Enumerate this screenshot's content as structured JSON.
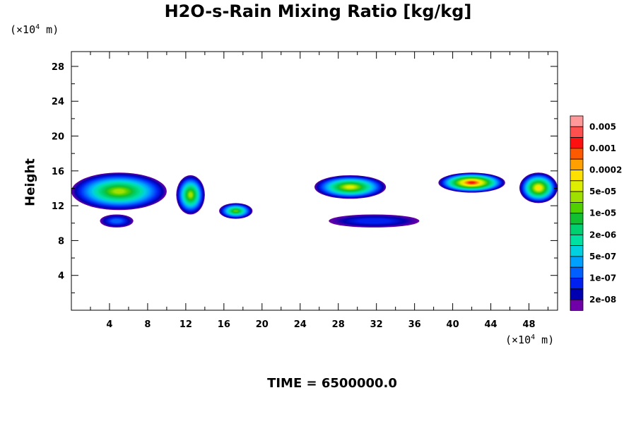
{
  "title": "H2O-s-Rain Mixing Ratio [kg/kg]",
  "time_label": "TIME = 6500000.0",
  "unit_y": {
    "prefix": "(×10",
    "exp": "4",
    "suffix": " m)"
  },
  "unit_x": {
    "prefix": "(×10",
    "exp": "4",
    "suffix": " m)"
  },
  "chart_data": {
    "type": "heatmap",
    "title": "H2O-s-Rain Mixing Ratio [kg/kg]",
    "ylabel": "Height",
    "xlabel": "",
    "x_unit": "×10^4 m",
    "y_unit": "×10^4 m",
    "xlim": [
      0,
      51
    ],
    "ylim": [
      0,
      29.7
    ],
    "x_ticks": [
      "4",
      "8",
      "12",
      "16",
      "20",
      "24",
      "28",
      "32",
      "36",
      "40",
      "44",
      "48"
    ],
    "y_ticks": [
      "4",
      "8",
      "12",
      "16",
      "20",
      "24",
      "28"
    ],
    "grid": false,
    "colorbar": {
      "labels": [
        "0.005",
        "0.001",
        "0.0002",
        "5e-05",
        "1e-05",
        "2e-06",
        "5e-07",
        "1e-07",
        "2e-08"
      ],
      "colors": [
        "#FF9999",
        "#FF5050",
        "#FF1010",
        "#FF5A00",
        "#FFA000",
        "#FFE000",
        "#DDEE00",
        "#A0E000",
        "#50D000",
        "#10C030",
        "#00D070",
        "#00E0A0",
        "#00D0E0",
        "#00A0FF",
        "#0060FF",
        "#0020F0",
        "#0000B0",
        "#7000A8"
      ]
    },
    "regions": [
      {
        "x": [
          0,
          10
        ],
        "y": [
          11.5,
          15.8
        ],
        "max_level": 10
      },
      {
        "x": [
          3,
          6.5
        ],
        "y": [
          9.5,
          11
        ],
        "max_level": 3
      },
      {
        "x": [
          11,
          14
        ],
        "y": [
          11,
          15.5
        ],
        "max_level": 10
      },
      {
        "x": [
          15.5,
          19
        ],
        "y": [
          10.5,
          12.3
        ],
        "max_level": 9
      },
      {
        "x": [
          25.5,
          33
        ],
        "y": [
          12.8,
          15.5
        ],
        "max_level": 11
      },
      {
        "x": [
          27,
          36.5
        ],
        "y": [
          9.5,
          11
        ],
        "max_level": 2
      },
      {
        "x": [
          38.5,
          45.5
        ],
        "y": [
          13.5,
          15.8
        ],
        "max_level": 15
      },
      {
        "x": [
          47,
          51
        ],
        "y": [
          12.3,
          15.8
        ],
        "max_level": 12
      }
    ]
  }
}
